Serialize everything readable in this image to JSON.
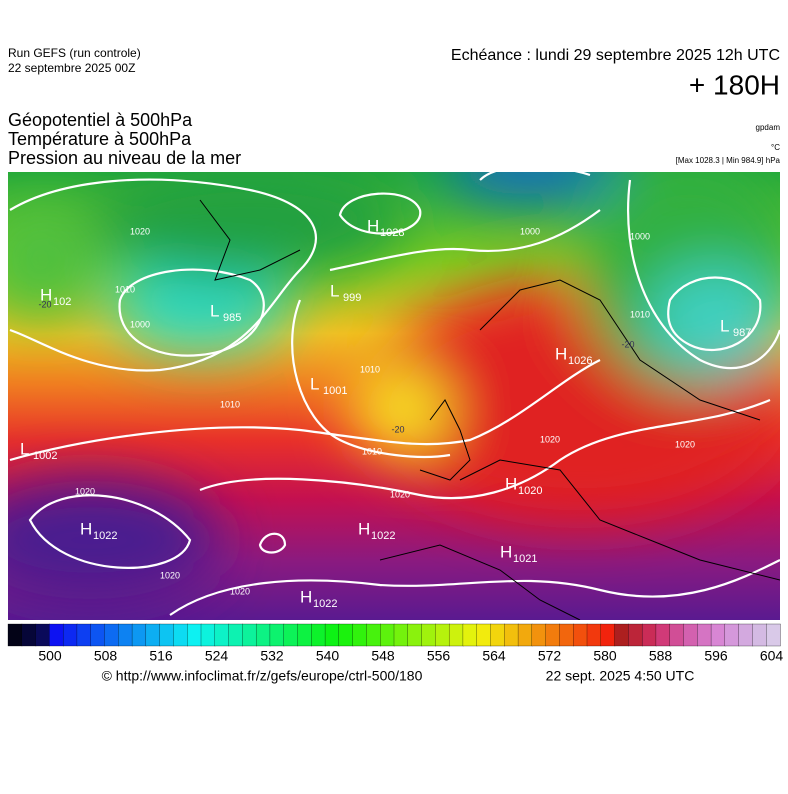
{
  "header": {
    "run": "Run GEFS (run controle)",
    "run_date": "22 septembre 2025 00Z",
    "echeance": "Echéance : lundi 29 septembre 2025 12h UTC",
    "lead": "+ 180H"
  },
  "fields": [
    "Géopotentiel à 500hPa",
    "Température à 500hPa",
    "Pression au niveau de la mer"
  ],
  "units": [
    "gpdam",
    "°C",
    "[Max 1028.3 | Min 984.9] hPa"
  ],
  "centers": [
    {
      "type": "H",
      "value": "1028"
    },
    {
      "type": "L",
      "value": "985"
    },
    {
      "type": "L",
      "value": "999"
    },
    {
      "type": "H",
      "value": "102"
    },
    {
      "type": "L",
      "value": "987"
    },
    {
      "type": "H",
      "value": "1026"
    },
    {
      "type": "L",
      "value": "1001"
    },
    {
      "type": "L",
      "value": "1002"
    },
    {
      "type": "H",
      "value": "1020"
    },
    {
      "type": "H",
      "value": "1022"
    },
    {
      "type": "H",
      "value": "1022"
    },
    {
      "type": "H",
      "value": "1021"
    },
    {
      "type": "H",
      "value": "1022"
    }
  ],
  "contour_labels": [
    "1020",
    "1010",
    "1000",
    "1000",
    "1000",
    "1010",
    "1010",
    "1010",
    "1010",
    "1020",
    "1020",
    "1020",
    "1020",
    "1020",
    "1020"
  ],
  "temperature_labels": [
    "-20",
    "-20",
    "-20"
  ],
  "colorbar_ticks": [
    500,
    508,
    516,
    524,
    532,
    540,
    548,
    556,
    564,
    572,
    580,
    588,
    596,
    604
  ],
  "footer": {
    "url": "© http://www.infoclimat.fr/z/gefs/europe/ctrl-500/180",
    "time": "22 sept. 2025  4:50 UTC"
  }
}
